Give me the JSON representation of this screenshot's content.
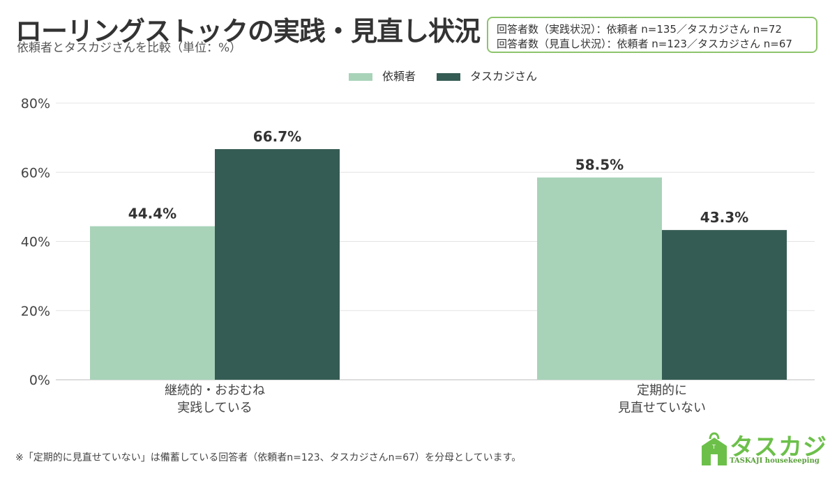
{
  "header": {
    "title": "ローリングストックの実践・見直し状況",
    "subtitle": "依頼者とタスカジさんを比較（単位：%）"
  },
  "respondents": {
    "line1": "回答者数（実践状況）：依頼者 n=135／タスカジさん n=72",
    "line2": "回答者数（見直し状況）：依頼者 n=123／タスカジさん n=67"
  },
  "footnote": "※「定期的に見直せていない」は備蓄している回答者（依頼者n=123、タスカジさんn=67）を分母としています。",
  "logo": {
    "text": "タスカジ",
    "sub": "TASKAJI housekeeping",
    "icon": "house-bag-icon",
    "color": "#6cc04a"
  },
  "chart_data": {
    "type": "bar",
    "categories": [
      [
        "継続的・おおむね",
        "実践している"
      ],
      [
        "定期的に",
        "見直せていない"
      ]
    ],
    "series": [
      {
        "name": "依頼者",
        "values": [
          44.4,
          58.5
        ],
        "color": "#a8d3b9"
      },
      {
        "name": "タスカジさん",
        "values": [
          66.7,
          43.3
        ],
        "color": "#355c54"
      }
    ],
    "data_labels": [
      [
        "44.4%",
        "58.5%"
      ],
      [
        "66.7%",
        "43.3%"
      ]
    ],
    "y_ticks": [
      "0%",
      "20%",
      "40%",
      "60%",
      "80%"
    ],
    "ylim": [
      0,
      80
    ],
    "grid": true,
    "legend": "top-center"
  }
}
